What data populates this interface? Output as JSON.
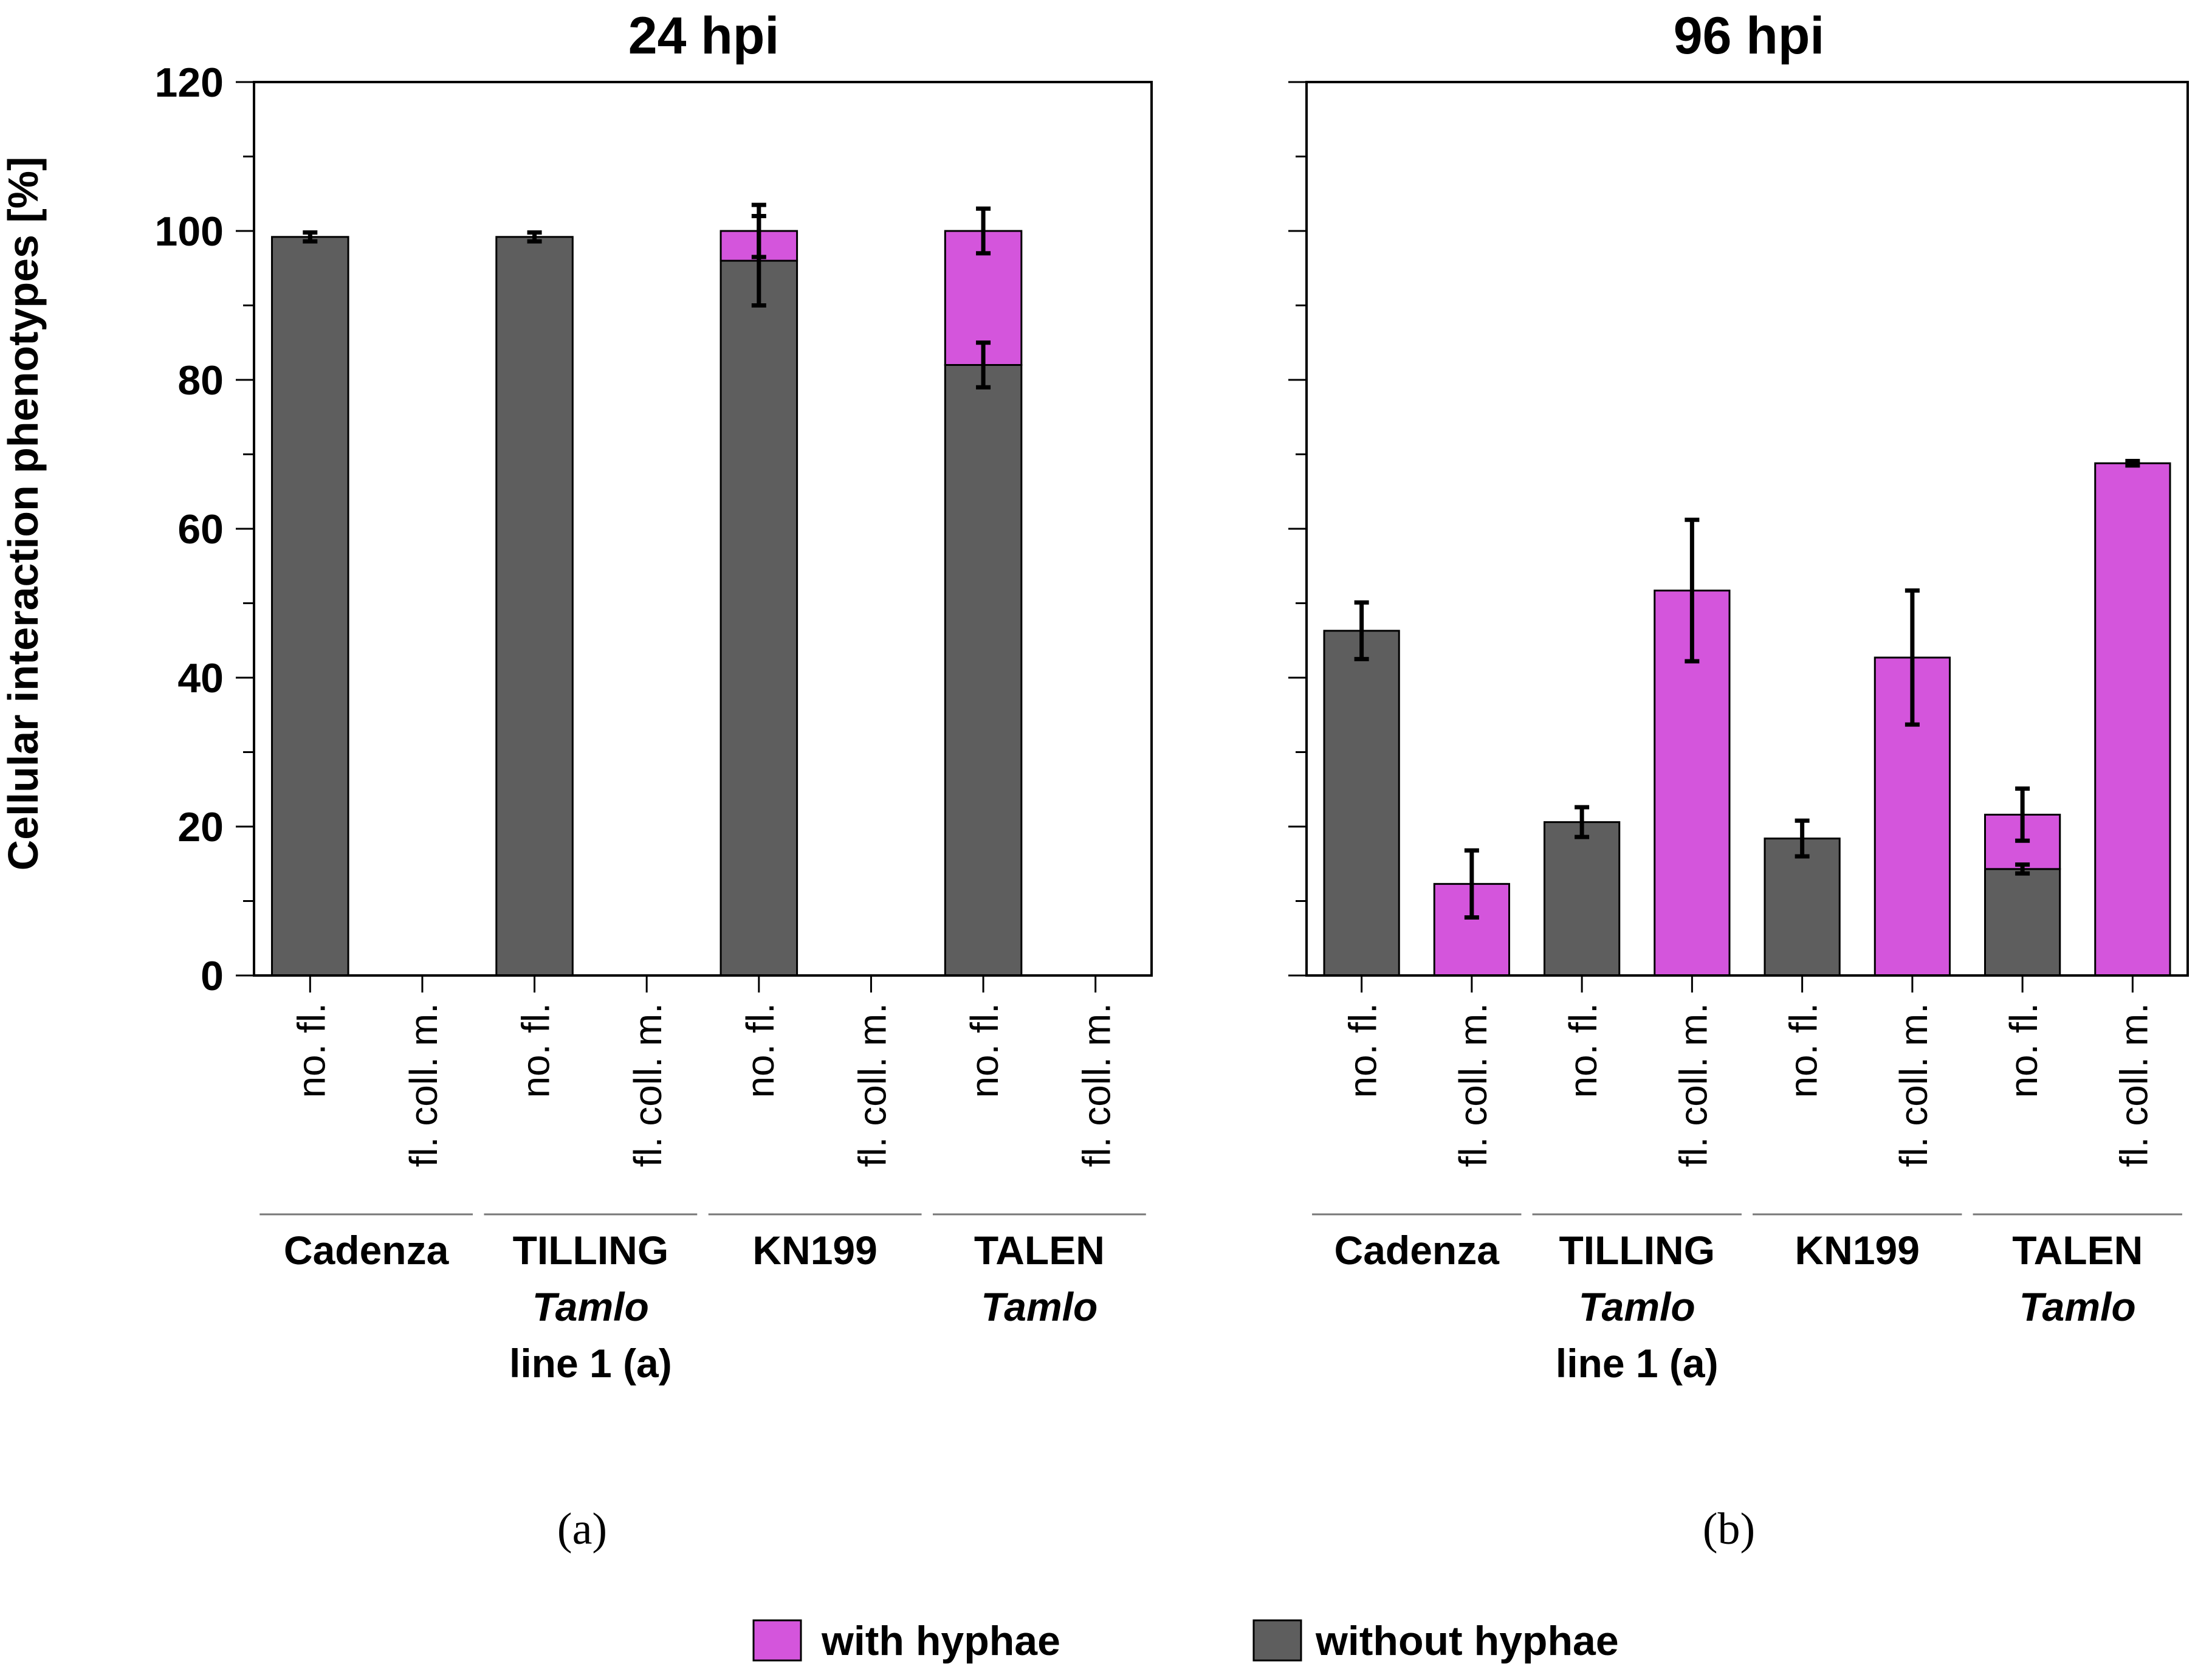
{
  "legend": {
    "with_hyphae": "with hyphae",
    "without_hyphae": "without hyphae",
    "with_color": "#d455dc",
    "without_color": "#5e5e5e"
  },
  "y_axis_label": "Cellular interaction phenotypes [%]",
  "chart_data": [
    {
      "type": "bar",
      "stacked": true,
      "title": "24 hpi",
      "panel_label": "(a)",
      "ylim": [
        0,
        120
      ],
      "yticks": [
        0,
        20,
        40,
        60,
        80,
        100,
        120
      ],
      "categories": [
        "no. fl.",
        "fl. coll. m.",
        "no. fl.",
        "fl. coll. m.",
        "no. fl.",
        "fl. coll. m.",
        "no. fl.",
        "fl. coll. m."
      ],
      "groups": [
        {
          "name": [
            "Cadenza"
          ],
          "italic": [
            false
          ]
        },
        {
          "name": [
            "TILLING",
            "Tamlo",
            "line 1 (a)"
          ],
          "italic": [
            false,
            true,
            false
          ]
        },
        {
          "name": [
            "KN199"
          ],
          "italic": [
            false
          ]
        },
        {
          "name": [
            "TALEN",
            "Tamlo"
          ],
          "italic": [
            false,
            true
          ]
        }
      ],
      "series": [
        {
          "name": "without hyphae",
          "color": "#5e5e5e",
          "values": [
            99.2,
            0,
            99.2,
            0,
            96,
            0,
            82,
            0
          ],
          "errors": [
            0.6,
            0,
            0.6,
            0,
            6,
            0,
            3,
            0
          ]
        },
        {
          "name": "with hyphae",
          "color": "#d455dc",
          "values": [
            0,
            0,
            0,
            0,
            4,
            0,
            18,
            0
          ],
          "errors": [
            0,
            0,
            0,
            0,
            3.5,
            0,
            3,
            0
          ]
        }
      ]
    },
    {
      "type": "bar",
      "stacked": true,
      "title": "96 hpi",
      "panel_label": "(b)",
      "ylim": [
        0,
        120
      ],
      "yticks": [
        0,
        20,
        40,
        60,
        80,
        100,
        120
      ],
      "categories": [
        "no. fl.",
        "fl. coll. m.",
        "no. fl.",
        "fl. coll. m.",
        "no. fl.",
        "fl. coll. m.",
        "no. fl.",
        "fl. coll. m."
      ],
      "groups": [
        {
          "name": [
            "Cadenza"
          ],
          "italic": [
            false
          ]
        },
        {
          "name": [
            "TILLING",
            "Tamlo",
            "line 1 (a)"
          ],
          "italic": [
            false,
            true,
            false
          ]
        },
        {
          "name": [
            "KN199"
          ],
          "italic": [
            false
          ]
        },
        {
          "name": [
            "TALEN",
            "Tamlo"
          ],
          "italic": [
            false,
            true
          ]
        }
      ],
      "series": [
        {
          "name": "without hyphae",
          "color": "#5e5e5e",
          "values": [
            46.3,
            0,
            20.6,
            0,
            18.4,
            0,
            14.3,
            0
          ],
          "errors": [
            3.8,
            0,
            2,
            0,
            2.4,
            0,
            0.6,
            0
          ]
        },
        {
          "name": "with hyphae",
          "color": "#d455dc",
          "values": [
            0,
            12.3,
            0,
            51.7,
            0,
            42.7,
            7.3,
            68.8
          ],
          "errors": [
            0,
            4.5,
            0,
            9.5,
            0,
            9,
            3.5,
            0.3
          ]
        }
      ]
    }
  ]
}
